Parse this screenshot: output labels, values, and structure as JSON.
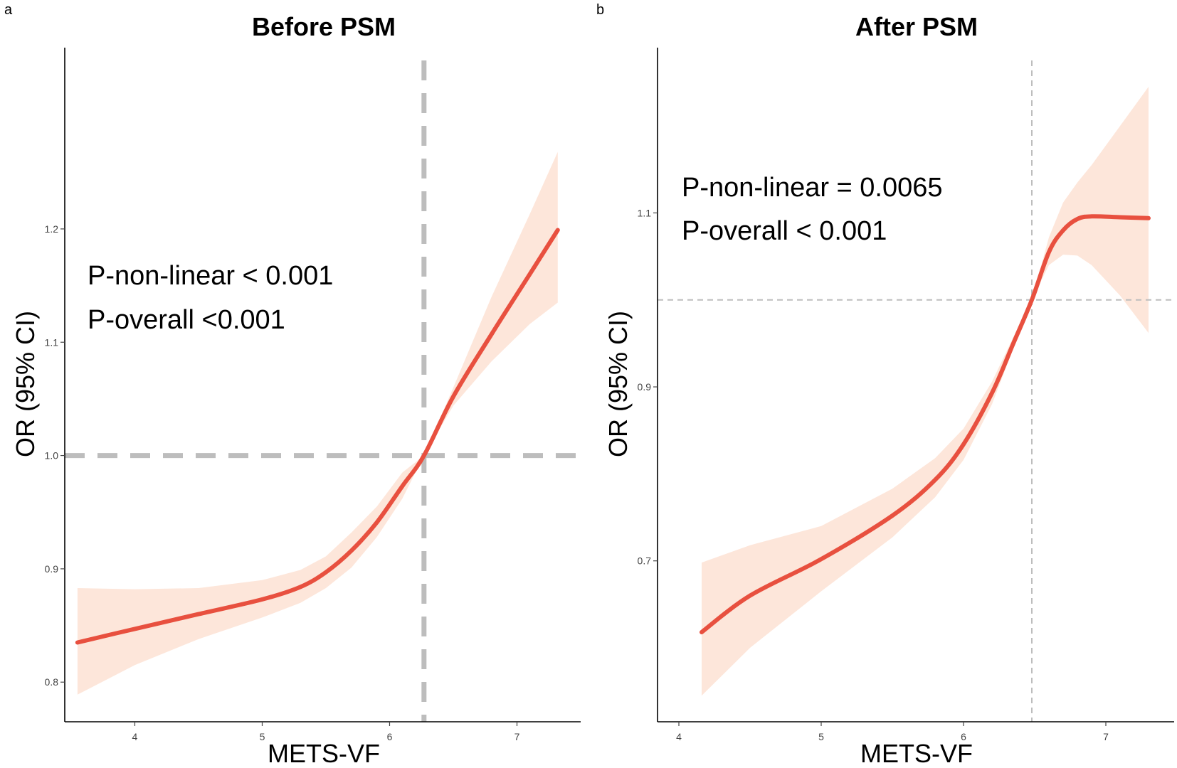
{
  "chart_data": [
    {
      "type": "line",
      "panel_label": "a",
      "title": "Before PSM",
      "xlabel": "METS-VF",
      "ylabel": "OR (95% CI)",
      "xlim": [
        3.45,
        7.5
      ],
      "ylim": [
        0.765,
        1.36
      ],
      "xticks": [
        4,
        5,
        6,
        7
      ],
      "xtick_labels": [
        "4",
        "5",
        "6",
        "7"
      ],
      "yticks": [
        0.8,
        0.9,
        1.0,
        1.1,
        1.2
      ],
      "ytick_labels": [
        "0.8",
        "0.9",
        "1.0",
        "1.1",
        "1.2"
      ],
      "reference_lines": {
        "x": 6.27,
        "y": 1.0,
        "style": "thick-dashed"
      },
      "annotations": [
        "P-non-linear < 0.001",
        "P-overall <0.001"
      ],
      "grid": false,
      "series": [
        {
          "name": "OR",
          "color": "#E8503F",
          "ci_color": "#FDE6DA",
          "x": [
            3.55,
            4.0,
            4.5,
            5.0,
            5.3,
            5.5,
            5.7,
            5.9,
            6.1,
            6.27,
            6.5,
            6.8,
            7.1,
            7.32
          ],
          "y": [
            0.835,
            0.847,
            0.86,
            0.873,
            0.884,
            0.897,
            0.916,
            0.941,
            0.973,
            1.0,
            1.052,
            1.107,
            1.16,
            1.199
          ],
          "lower": [
            0.789,
            0.815,
            0.838,
            0.857,
            0.87,
            0.883,
            0.901,
            0.928,
            0.962,
            1.0,
            1.044,
            1.083,
            1.116,
            1.135
          ],
          "upper": [
            0.883,
            0.882,
            0.883,
            0.89,
            0.899,
            0.911,
            0.932,
            0.955,
            0.985,
            1.0,
            1.06,
            1.14,
            1.213,
            1.268
          ]
        }
      ]
    },
    {
      "type": "line",
      "panel_label": "b",
      "title": "After PSM",
      "xlabel": "METS-VF",
      "ylabel": "OR (95% CI)",
      "xlim": [
        3.85,
        7.48
      ],
      "ylim": [
        0.515,
        1.29
      ],
      "xticks": [
        4,
        5,
        6,
        7
      ],
      "xtick_labels": [
        "4",
        "5",
        "6",
        "7"
      ],
      "yticks": [
        0.7,
        0.9,
        1.1
      ],
      "ytick_labels": [
        "0.7",
        "0.9",
        "1.1"
      ],
      "reference_lines": {
        "x": 6.48,
        "y": 1.0,
        "style": "thin-dashed"
      },
      "annotations": [
        "P-non-linear = 0.0065",
        "P-overall < 0.001"
      ],
      "grid": false,
      "series": [
        {
          "name": "OR",
          "color": "#E8503F",
          "ci_color": "#FDE6DA",
          "x": [
            4.16,
            4.5,
            5.0,
            5.5,
            5.8,
            6.0,
            6.2,
            6.35,
            6.48,
            6.6,
            6.7,
            6.8,
            6.9,
            7.1,
            7.3
          ],
          "y": [
            0.618,
            0.66,
            0.702,
            0.752,
            0.793,
            0.834,
            0.893,
            0.95,
            1.0,
            1.055,
            1.08,
            1.093,
            1.096,
            1.095,
            1.094
          ],
          "lower": [
            0.545,
            0.6,
            0.665,
            0.727,
            0.773,
            0.816,
            0.88,
            0.944,
            1.0,
            1.04,
            1.052,
            1.051,
            1.04,
            1.005,
            0.962
          ],
          "upper": [
            0.698,
            0.718,
            0.74,
            0.783,
            0.818,
            0.852,
            0.906,
            0.957,
            1.0,
            1.072,
            1.112,
            1.135,
            1.155,
            1.2,
            1.245
          ]
        }
      ]
    }
  ]
}
